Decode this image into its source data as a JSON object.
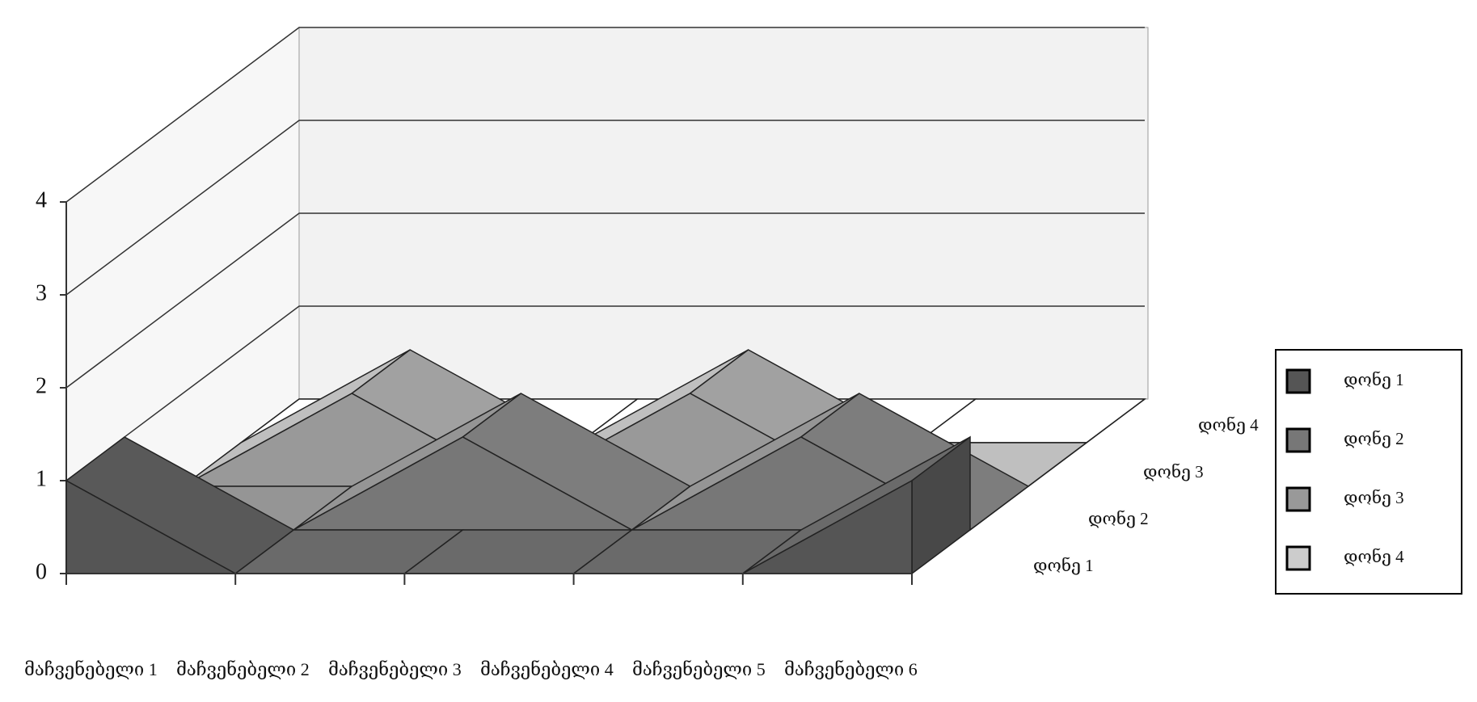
{
  "chart_data": {
    "type": "area3d",
    "categories": [
      "მაჩვენებელი 1",
      "მაჩვენებელი 2",
      "მაჩვენებელი 3",
      "მაჩვენებელი 4",
      "მაჩვენებელი 5",
      "მაჩვენებელი 6"
    ],
    "series": [
      {
        "name": "დონე 1",
        "color": "#555555",
        "values": [
          1,
          0,
          0,
          0,
          0,
          1
        ]
      },
      {
        "name": "დონე 2",
        "color": "#777777",
        "values": [
          0,
          0,
          1,
          0,
          1,
          0
        ]
      },
      {
        "name": "დონე 3",
        "color": "#999999",
        "values": [
          0,
          1,
          0,
          1,
          0,
          0
        ]
      },
      {
        "name": "დონე 4",
        "color": "#cccccc",
        "values": [
          0,
          0,
          0,
          0,
          0,
          0
        ]
      }
    ],
    "ylim": [
      0,
      4
    ],
    "yticks": [
      0,
      1,
      2,
      3,
      4
    ],
    "grid": true,
    "legend": "right"
  }
}
